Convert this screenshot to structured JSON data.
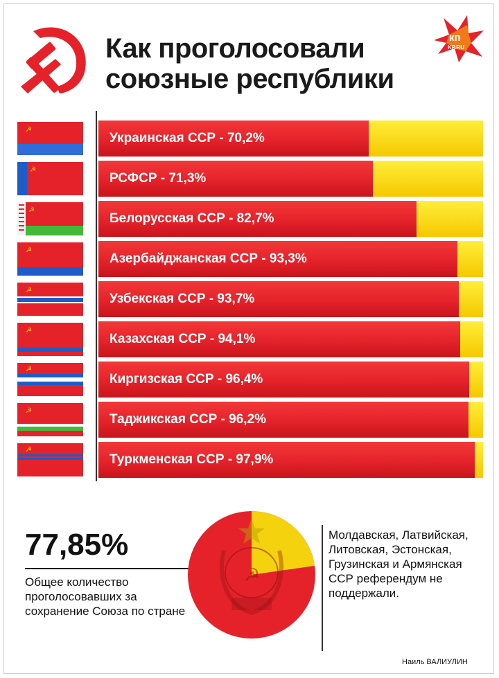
{
  "title_line1": "Как проголосовали",
  "title_line2": "союзные республики",
  "logo": {
    "text": "кп",
    "sub": "KP.RU"
  },
  "colors": {
    "red": "#e5222a",
    "yellow": "#f9d71c",
    "hammer": "#e5222a"
  },
  "chart_data": {
    "type": "bar",
    "orientation": "horizontal",
    "stacked_100": true,
    "categories": [
      "Украинская ССР",
      "РСФСР",
      "Белорусская ССР",
      "Азербайджанская ССР",
      "Узбекская ССР",
      "Казахская ССР",
      "Киргизская ССР",
      "Таджикская ССР",
      "Туркменская ССР"
    ],
    "labels": [
      "Украинская ССР - 70,2%",
      "РСФСР - 71,3%",
      "Белорусская ССР - 82,7%",
      "Азербайджанская ССР - 93,3%",
      "Узбекская ССР - 93,7%",
      "Казахская ССР - 94,1%",
      "Киргизская ССР - 96,4%",
      "Таджикская ССР - 96,2%",
      "Туркменская ССР - 97,9%"
    ],
    "values": [
      70.2,
      71.3,
      82.7,
      93.3,
      93.7,
      94.1,
      96.4,
      96.2,
      97.9
    ],
    "xlim": [
      0,
      100
    ],
    "series_colors": [
      "#e5222a",
      "#f9d71c"
    ]
  },
  "summary": {
    "value": "77,85%",
    "caption": "Общее количество проголосовавших за сохранение Союза по стране"
  },
  "note": "Молдавская, Латвийская, Литовская, Эстонская, Грузинская и Армянская ССР референдум не поддержали.",
  "author": "Наиль ВАЛИУЛИН"
}
